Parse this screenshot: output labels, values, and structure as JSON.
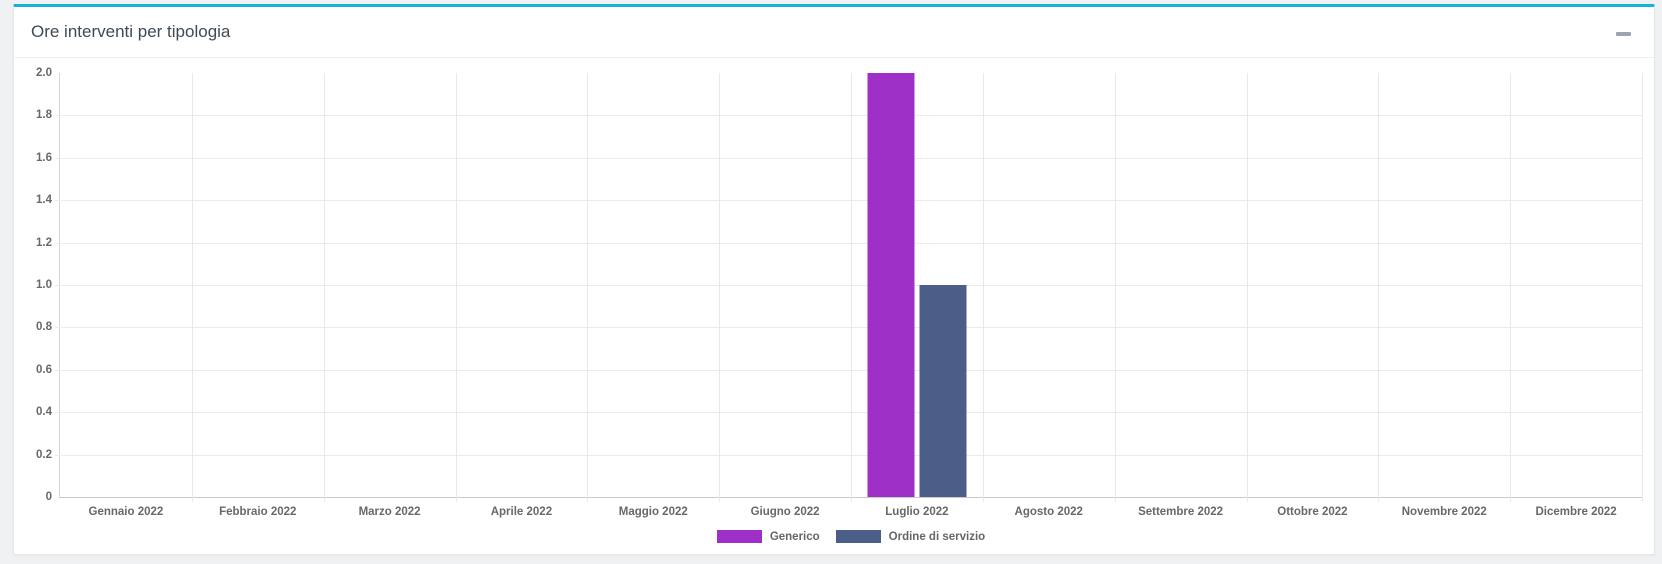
{
  "page": {
    "background_color": "#eff1f3"
  },
  "panel": {
    "title": "Ore interventi per tipologia",
    "accent_color": "#16b1d4",
    "collapse_icon": "minus"
  },
  "chart_data": {
    "type": "bar",
    "title": "Ore interventi per tipologia",
    "categories": [
      "Gennaio 2022",
      "Febbraio 2022",
      "Marzo 2022",
      "Aprile 2022",
      "Maggio 2022",
      "Giugno 2022",
      "Luglio 2022",
      "Agosto 2022",
      "Settembre 2022",
      "Ottobre 2022",
      "Novembre 2022",
      "Dicembre 2022"
    ],
    "series": [
      {
        "name": "Generico",
        "color": "#9e30c8",
        "values": [
          0,
          0,
          0,
          0,
          0,
          0,
          2,
          0,
          0,
          0,
          0,
          0
        ]
      },
      {
        "name": "Ordine di servizio",
        "color": "#4c5d87",
        "values": [
          0,
          0,
          0,
          0,
          0,
          0,
          1,
          0,
          0,
          0,
          0,
          0
        ]
      }
    ],
    "ylim": [
      0,
      2
    ],
    "ytick_step": 0.2,
    "yticks": [
      "2.0",
      "1.8",
      "1.6",
      "1.4",
      "1.2",
      "1.0",
      "0.8",
      "0.6",
      "0.4",
      "0.2",
      "0"
    ],
    "grid": true,
    "legend_position": "bottom"
  }
}
